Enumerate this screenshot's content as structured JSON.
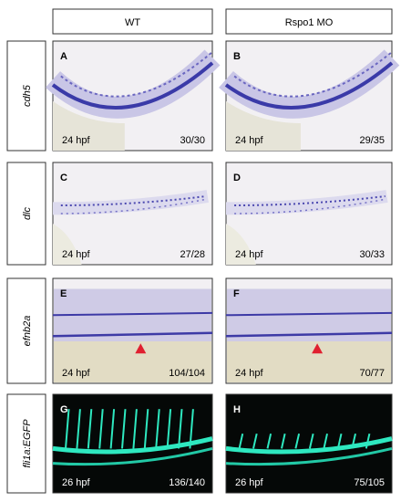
{
  "columns": [
    "WT",
    "Rspo1 MO"
  ],
  "rows": [
    {
      "label": "cdh5",
      "panels": [
        {
          "letter": "A",
          "stage": "24 hpf",
          "count": "30/30"
        },
        {
          "letter": "B",
          "stage": "24 hpf",
          "count": "29/35"
        }
      ]
    },
    {
      "label": "dlc",
      "panels": [
        {
          "letter": "C",
          "stage": "24 hpf",
          "count": "27/28"
        },
        {
          "letter": "D",
          "stage": "24 hpf",
          "count": "30/33"
        }
      ]
    },
    {
      "label": "efnb2a",
      "panels": [
        {
          "letter": "E",
          "stage": "24 hpf",
          "count": "104/104"
        },
        {
          "letter": "F",
          "stage": "24 hpf",
          "count": "70/77"
        }
      ]
    },
    {
      "label": "fli1a:EGFP",
      "panels": [
        {
          "letter": "G",
          "stage": "26 hpf",
          "count": "136/140"
        },
        {
          "letter": "H",
          "stage": "26 hpf",
          "count": "75/105"
        }
      ]
    }
  ]
}
